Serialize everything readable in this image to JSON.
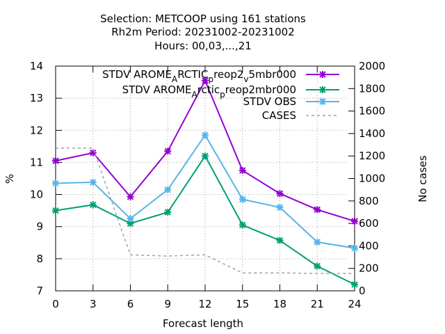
{
  "chart_data": {
    "type": "line",
    "title_lines": [
      "Selection: METCOOP using   161 stations",
      "Rh2m   Period: 20231002-20231002",
      "Hours:  00,03,...,21"
    ],
    "xlabel": "Forecast length",
    "ylabel": "%",
    "y2label": "No cases",
    "x": [
      0,
      3,
      6,
      9,
      12,
      15,
      18,
      21,
      24
    ],
    "xlim": [
      0,
      24
    ],
    "ylim": [
      7,
      14
    ],
    "y2lim": [
      0,
      2000
    ],
    "xticks": [
      "0",
      "3",
      "6",
      "9",
      "12",
      "15",
      "18",
      "21",
      "24"
    ],
    "yticks": [
      "7",
      "8",
      "9",
      "10",
      "11",
      "12",
      "13",
      "14"
    ],
    "y2ticks": [
      "0",
      "200",
      "400",
      "600",
      "800",
      "1000",
      "1200",
      "1400",
      "1600",
      "1800",
      "2000"
    ],
    "legend_position": "top-right",
    "series": [
      {
        "name_parts": [
          "STDV AROME",
          "A",
          "RCTIC",
          "p",
          "reop2",
          "v",
          "5mbr000"
        ],
        "axis": "y1",
        "color": "#9400d3",
        "values": [
          11.05,
          11.3,
          9.93,
          11.35,
          13.55,
          10.75,
          10.03,
          9.53,
          9.17
        ]
      },
      {
        "name_parts": [
          "STDV AROME",
          "A",
          "rctic",
          "p",
          "reop2mbr000"
        ],
        "axis": "y1",
        "color": "#009e73",
        "values": [
          9.5,
          9.68,
          9.1,
          9.45,
          11.2,
          9.05,
          8.57,
          7.77,
          7.2
        ]
      },
      {
        "name": "STDV OBS",
        "axis": "y1",
        "color": "#56b4e9",
        "values": [
          10.35,
          10.38,
          9.25,
          10.15,
          11.85,
          9.85,
          9.6,
          8.52,
          8.33
        ]
      },
      {
        "name": "CASES",
        "axis": "y2",
        "color": "#a0a0a0",
        "dashed": true,
        "values": [
          1270,
          1270,
          320,
          310,
          320,
          160,
          160,
          155,
          155
        ]
      }
    ]
  }
}
